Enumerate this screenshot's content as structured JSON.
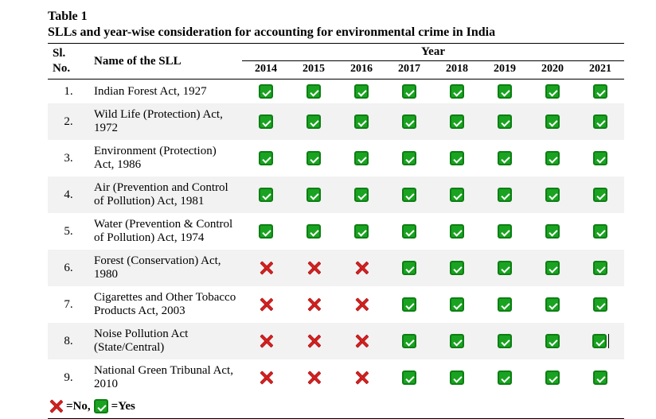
{
  "caption": {
    "title": "Table 1",
    "subtitle": "SLLs and year-wise consideration for accounting for environmental crime in India"
  },
  "header": {
    "sl_line1": "Sl.",
    "sl_line2": "No.",
    "name": "Name of the SLL",
    "year_label": "Year",
    "years": [
      "2014",
      "2015",
      "2016",
      "2017",
      "2018",
      "2019",
      "2020",
      "2021"
    ]
  },
  "marks": {
    "yes_color": "#1aa321",
    "yes_border": "#0d7f14",
    "no_color": "#d62121"
  },
  "rows": [
    {
      "sl": "1.",
      "name": "Indian Forest Act, 1927",
      "vals": [
        true,
        true,
        true,
        true,
        true,
        true,
        true,
        true
      ],
      "alt": false
    },
    {
      "sl": "2.",
      "name": "Wild Life (Protection) Act, 1972",
      "vals": [
        true,
        true,
        true,
        true,
        true,
        true,
        true,
        true
      ],
      "alt": true
    },
    {
      "sl": "3.",
      "name": "Environment (Protection) Act, 1986",
      "vals": [
        true,
        true,
        true,
        true,
        true,
        true,
        true,
        true
      ],
      "alt": false
    },
    {
      "sl": "4.",
      "name": "Air (Prevention and Control of Pollution) Act, 1981",
      "vals": [
        true,
        true,
        true,
        true,
        true,
        true,
        true,
        true
      ],
      "alt": true
    },
    {
      "sl": "5.",
      "name": "Water (Prevention & Control of Pollution) Act, 1974",
      "vals": [
        true,
        true,
        true,
        true,
        true,
        true,
        true,
        true
      ],
      "alt": false
    },
    {
      "sl": "6.",
      "name": "Forest (Conservation) Act, 1980",
      "vals": [
        false,
        false,
        false,
        true,
        true,
        true,
        true,
        true
      ],
      "alt": true
    },
    {
      "sl": "7.",
      "name": "Cigarettes and Other Tobacco Products Act, 2003",
      "vals": [
        false,
        false,
        false,
        true,
        true,
        true,
        true,
        true
      ],
      "alt": false
    },
    {
      "sl": "8.",
      "name": "Noise Pollution Act (State/Central)",
      "vals": [
        false,
        false,
        false,
        true,
        true,
        true,
        true,
        true
      ],
      "alt": true,
      "cursor": true
    },
    {
      "sl": "9.",
      "name": "National Green Tribunal Act, 2010",
      "vals": [
        false,
        false,
        false,
        true,
        true,
        true,
        true,
        true
      ],
      "alt": false
    }
  ],
  "legend": {
    "no_label": "=No,",
    "yes_label": "=Yes"
  }
}
